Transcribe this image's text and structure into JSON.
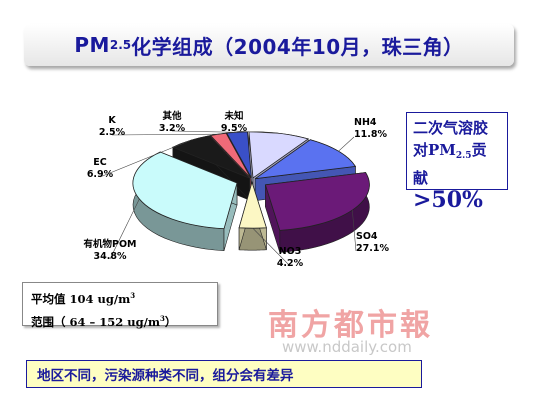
{
  "title": {
    "main": "PM",
    "sub": "2.5",
    "rest": "化学组成（2004年10月，珠三角）"
  },
  "callout": {
    "line1": "二次气溶胶",
    "line2_pre": "对PM",
    "line2_sub": "2.5",
    "line2_post": "贡献",
    "line3": ">50%"
  },
  "stats": {
    "avg_label": "平均值",
    "avg_value": "104 ug/m",
    "avg_sup": "3",
    "range_label": "范围（ 64 – 152 ug/m",
    "range_sup": "3",
    "range_end": "）"
  },
  "footer": "地区不同，污染源种类不同，组分会有差异",
  "watermark": {
    "brand": "南方都市報",
    "url": "www.nddaily.com"
  },
  "chart_data": {
    "type": "pie",
    "title": "PM2.5化学组成（2004年10月，珠三角）",
    "slices": [
      {
        "name": "NH4",
        "value": 11.8,
        "label": "11.8%",
        "color": "#5a72f0"
      },
      {
        "name": "SO4",
        "value": 27.1,
        "label": "27.1%",
        "color": "#6b1a78"
      },
      {
        "name": "NO3",
        "value": 4.2,
        "label": "4.2%",
        "color": "#fcf7c4"
      },
      {
        "name": "有机物POM",
        "value": 34.8,
        "label": "34.8%",
        "color": "#c9fbfb"
      },
      {
        "name": "EC",
        "value": 6.9,
        "label": "6.9%",
        "color": "#1a1a1a"
      },
      {
        "name": "K",
        "value": 2.5,
        "label": "2.5%",
        "color": "#f06a78"
      },
      {
        "name": "其他",
        "value": 3.2,
        "label": "3.2%",
        "color": "#3a50c8"
      },
      {
        "name": "未知",
        "value": 9.5,
        "label": "9.5%",
        "color": "#d9d9ff"
      }
    ],
    "exploded": [
      "SO4",
      "有机物POM"
    ]
  }
}
